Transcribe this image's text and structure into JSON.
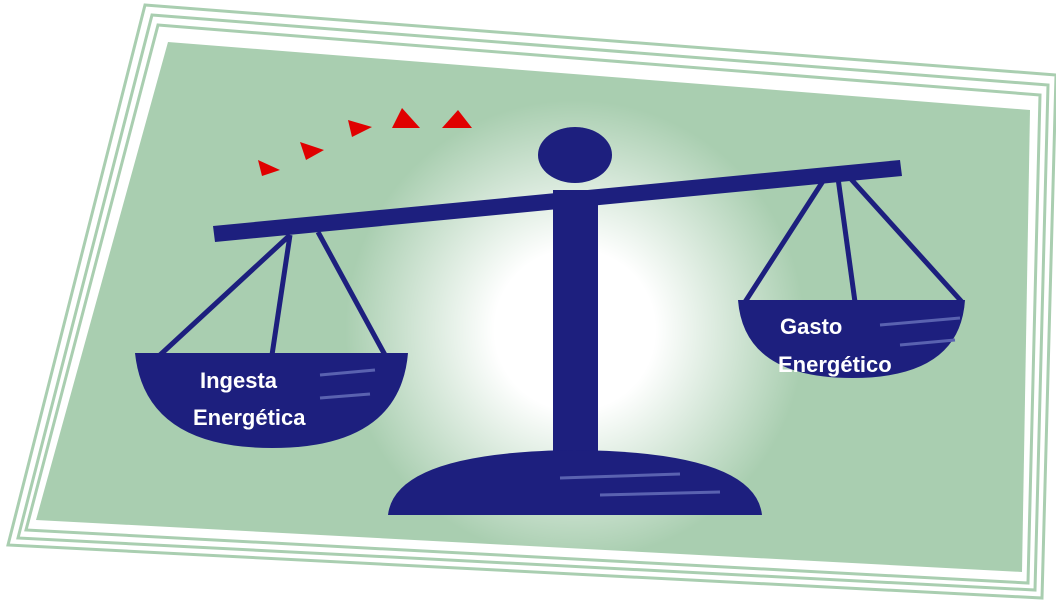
{
  "left_pan": {
    "lines": [
      "Ingesta",
      "Energética"
    ]
  },
  "right_pan": {
    "lines": [
      "Gasto",
      "Energético"
    ]
  }
}
